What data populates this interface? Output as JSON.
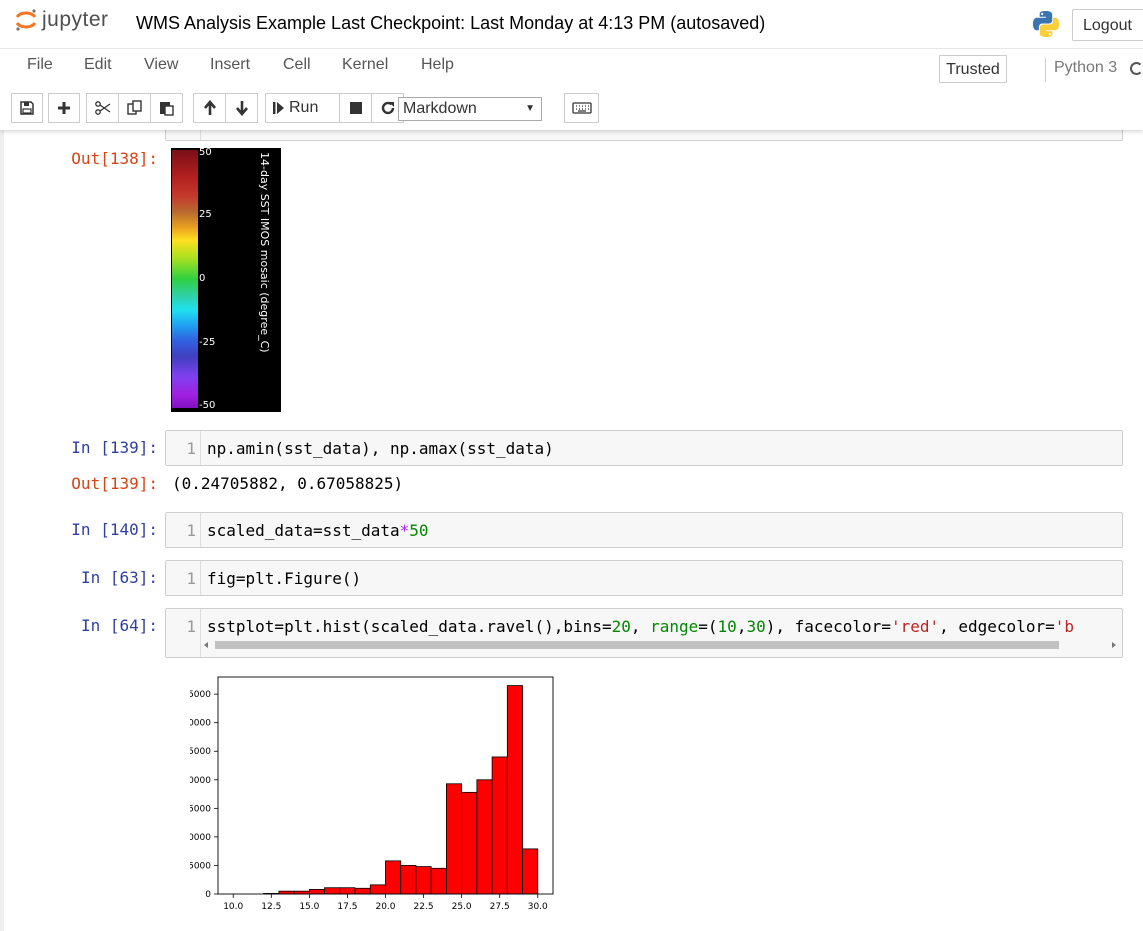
{
  "header": {
    "logo_text": "jupyter",
    "notebook_title": "WMS Analysis Example Last Checkpoint: Last Monday at 4:13 PM  (autosaved)",
    "logout_label": "Logout"
  },
  "menu": {
    "items": [
      "File",
      "Edit",
      "View",
      "Insert",
      "Cell",
      "Kernel",
      "Help"
    ],
    "trusted_label": "Trusted",
    "kernel_name": "Python 3"
  },
  "toolbar": {
    "run_label": "Run",
    "cell_type": "Markdown",
    "icons": [
      "save-icon",
      "plus-icon",
      "cut-icon",
      "copy-icon",
      "paste-icon",
      "arrow-up-icon",
      "arrow-down-icon",
      "run-icon",
      "stop-icon",
      "restart-icon",
      "keyboard-icon"
    ]
  },
  "cells": {
    "out138": {
      "prompt": "Out[138]:",
      "colorbar": {
        "ticks": [
          "50",
          "25",
          "0",
          "-25",
          "-50"
        ],
        "label": "14-day SST IMOS mosaic (degree_C)"
      }
    },
    "in139": {
      "prompt": "In [139]:",
      "line": "1",
      "code": "np.amin(sst_data), np.amax(sst_data)"
    },
    "out139": {
      "prompt": "Out[139]:",
      "text": "(0.24705882, 0.67058825)"
    },
    "in140": {
      "prompt": "In [140]:",
      "line": "1",
      "code_a": "scaled_data=sst_data",
      "code_op": "*",
      "code_num": "50"
    },
    "in63": {
      "prompt": "In [63]:",
      "line": "1",
      "code": "fig=plt.Figure()"
    },
    "in64": {
      "prompt": "In [64]:",
      "line": "1",
      "code_1": "sstplot=plt.hist(scaled_data.ravel(),bins=",
      "code_2": "20",
      "code_3": ", ",
      "code_4": "range",
      "code_5": "=(",
      "code_6": "10",
      "code_7": ",",
      "code_8": "30",
      "code_9": "), facecolor=",
      "code_10": "'red'",
      "code_11": ", edgecolor=",
      "code_12": "'b"
    }
  },
  "chart_data": {
    "type": "bar",
    "title": "",
    "xlabel": "",
    "ylabel": "",
    "bin_edges": [
      10,
      11,
      12,
      13,
      14,
      15,
      16,
      17,
      18,
      19,
      20,
      21,
      22,
      23,
      24,
      25,
      26,
      27,
      28,
      29,
      30
    ],
    "values": [
      0,
      0,
      100,
      500,
      500,
      800,
      1100,
      1100,
      1000,
      1600,
      5800,
      5000,
      4800,
      4500,
      19300,
      17800,
      20000,
      24000,
      36500,
      7900
    ],
    "xlim": [
      9,
      31
    ],
    "ylim": [
      0,
      38000
    ],
    "xticks": [
      "10.0",
      "12.5",
      "15.0",
      "17.5",
      "20.0",
      "22.5",
      "25.0",
      "27.5",
      "30.0"
    ],
    "xtick_values": [
      10,
      12.5,
      15,
      17.5,
      20,
      22.5,
      25,
      27.5,
      30
    ],
    "yticks": [
      "0",
      "5000",
      "10000",
      "15000",
      "20000",
      "25000",
      "30000",
      "35000"
    ],
    "ytick_values": [
      0,
      5000,
      10000,
      15000,
      20000,
      25000,
      30000,
      35000
    ],
    "facecolor": "#ff0000",
    "edgecolor": "#000000"
  }
}
